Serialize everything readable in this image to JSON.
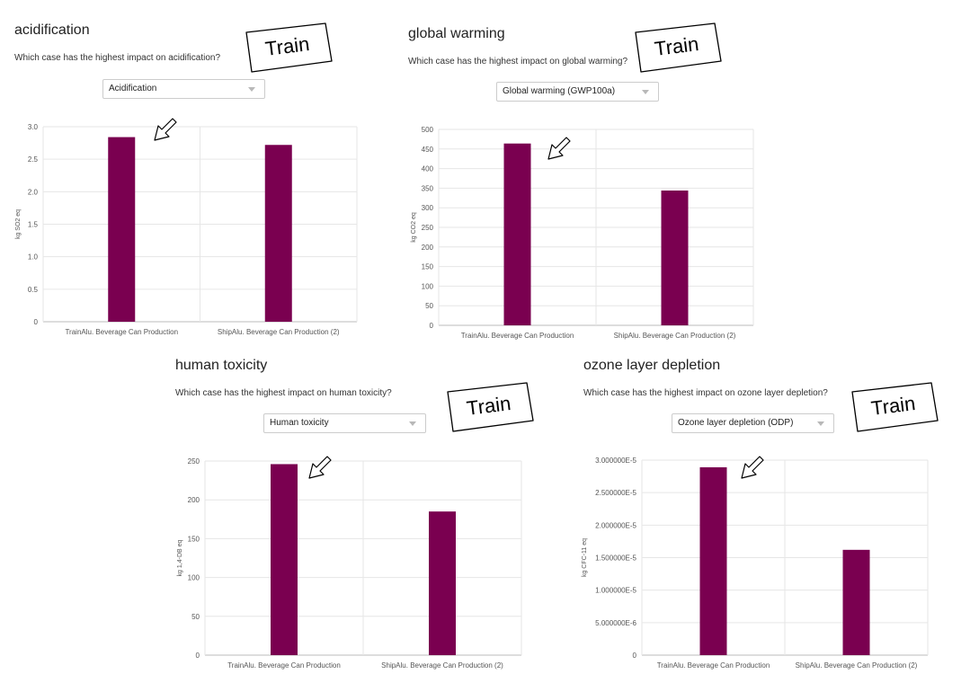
{
  "panels": [
    {
      "title": "acidification",
      "question": "Which case has the highest impact on acidification?",
      "dropdown": "Acidification",
      "callout": "Train"
    },
    {
      "title": "global warming",
      "question": "Which case has the highest impact on global warming?",
      "dropdown": "Global warming (GWP100a)",
      "callout": "Train"
    },
    {
      "title": "human toxicity",
      "question": "Which case has the highest impact on human toxicity?",
      "dropdown": "Human toxicity",
      "callout": "Train"
    },
    {
      "title": "ozone layer depletion",
      "question": "Which case has the highest impact on ozone layer depletion?",
      "dropdown": "Ozone layer depletion (ODP)",
      "callout": "Train"
    }
  ],
  "chart_data": [
    {
      "type": "bar",
      "categories": [
        "TrainAlu. Beverage Can Production",
        "ShipAlu. Beverage Can Production (2)"
      ],
      "values": [
        2.84,
        2.72
      ],
      "ylabel": "kg SO2 eq",
      "ylim": [
        0,
        3.0
      ],
      "yticks": [
        "0",
        "0.5",
        "1.0",
        "1.5",
        "2.0",
        "2.5",
        "3.0"
      ],
      "bar_color": "#7a0050",
      "grid": true
    },
    {
      "type": "bar",
      "categories": [
        "TrainAlu. Beverage Can Production",
        "ShipAlu. Beverage Can Production (2)"
      ],
      "values": [
        464,
        344
      ],
      "ylabel": "kg CO2 eq",
      "ylim": [
        0,
        500
      ],
      "yticks": [
        "0",
        "50",
        "100",
        "150",
        "200",
        "250",
        "300",
        "350",
        "400",
        "450",
        "500"
      ],
      "bar_color": "#7a0050",
      "grid": true
    },
    {
      "type": "bar",
      "categories": [
        "TrainAlu. Beverage Can Production",
        "ShipAlu. Beverage Can Production (2)"
      ],
      "values": [
        246,
        185
      ],
      "ylabel": "kg 1,4-DB eq",
      "ylim": [
        0,
        250
      ],
      "yticks": [
        "0",
        "50",
        "100",
        "150",
        "200",
        "250"
      ],
      "bar_color": "#7a0050",
      "grid": true
    },
    {
      "type": "bar",
      "categories": [
        "TrainAlu. Beverage Can Production",
        "ShipAlu. Beverage Can Production (2)"
      ],
      "values": [
        2.89e-05,
        1.62e-05
      ],
      "ylabel": "kg CFC-11 eq",
      "ylim": [
        0,
        3e-05
      ],
      "yticks": [
        "0",
        "5.000000E-6",
        "1.000000E-5",
        "1.500000E-5",
        "2.000000E-5",
        "2.500000E-5",
        "3.000000E-5"
      ],
      "bar_color": "#7a0050",
      "grid": true
    }
  ]
}
